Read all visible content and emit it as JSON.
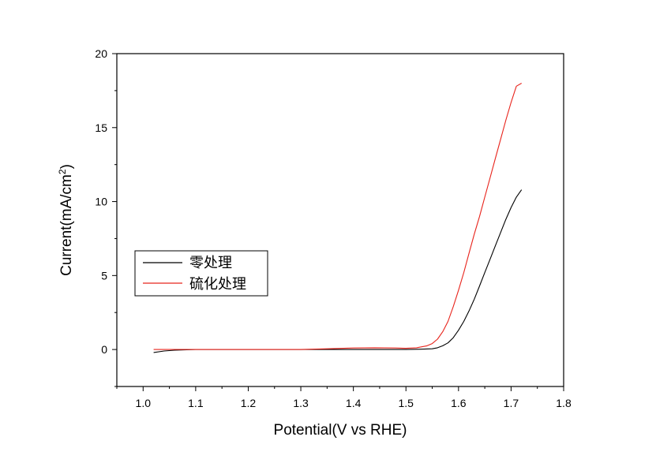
{
  "chart_data": {
    "type": "line",
    "xlabel": "Potential(V vs RHE)",
    "ylabel_main": "Current(mA/cm",
    "ylabel_sup": "2",
    "ylabel_close": ")",
    "xlim": [
      0.95,
      1.8
    ],
    "ylim": [
      -2.5,
      20
    ],
    "x_ticks": [
      1.0,
      1.1,
      1.2,
      1.3,
      1.4,
      1.5,
      1.6,
      1.7,
      1.8
    ],
    "x_tick_labels": [
      "1.0",
      "1.1",
      "1.2",
      "1.3",
      "1.4",
      "1.5",
      "1.6",
      "1.7",
      "1.8"
    ],
    "y_ticks": [
      0,
      5,
      10,
      15,
      20
    ],
    "y_tick_labels": [
      "0",
      "5",
      "10",
      "15",
      "20"
    ],
    "legend_position": "center-left",
    "series": [
      {
        "name": "零处理",
        "color": "#000000",
        "x": [
          1.02,
          1.04,
          1.06,
          1.1,
          1.2,
          1.3,
          1.4,
          1.45,
          1.5,
          1.53,
          1.55,
          1.56,
          1.57,
          1.58,
          1.59,
          1.6,
          1.61,
          1.62,
          1.63,
          1.64,
          1.65,
          1.66,
          1.67,
          1.68,
          1.69,
          1.7,
          1.71,
          1.72
        ],
        "y": [
          -0.2,
          -0.1,
          -0.05,
          0,
          0,
          0,
          0,
          0,
          0,
          0.02,
          0.05,
          0.12,
          0.25,
          0.45,
          0.8,
          1.3,
          1.9,
          2.6,
          3.4,
          4.3,
          5.2,
          6.1,
          7.0,
          7.9,
          8.8,
          9.6,
          10.3,
          10.8
        ]
      },
      {
        "name": "硫化处理",
        "color": "#e8241c",
        "x": [
          1.02,
          1.05,
          1.1,
          1.2,
          1.3,
          1.35,
          1.4,
          1.44,
          1.48,
          1.5,
          1.52,
          1.54,
          1.55,
          1.56,
          1.57,
          1.58,
          1.59,
          1.6,
          1.61,
          1.62,
          1.63,
          1.64,
          1.65,
          1.66,
          1.67,
          1.68,
          1.69,
          1.7,
          1.71,
          1.72
        ],
        "y": [
          0,
          0,
          0,
          0,
          0,
          0.05,
          0.1,
          0.12,
          0.1,
          0.08,
          0.12,
          0.25,
          0.4,
          0.7,
          1.2,
          1.9,
          2.9,
          4.0,
          5.2,
          6.5,
          7.8,
          9.0,
          10.3,
          11.6,
          12.9,
          14.2,
          15.5,
          16.7,
          17.8,
          18.0
        ]
      }
    ]
  }
}
